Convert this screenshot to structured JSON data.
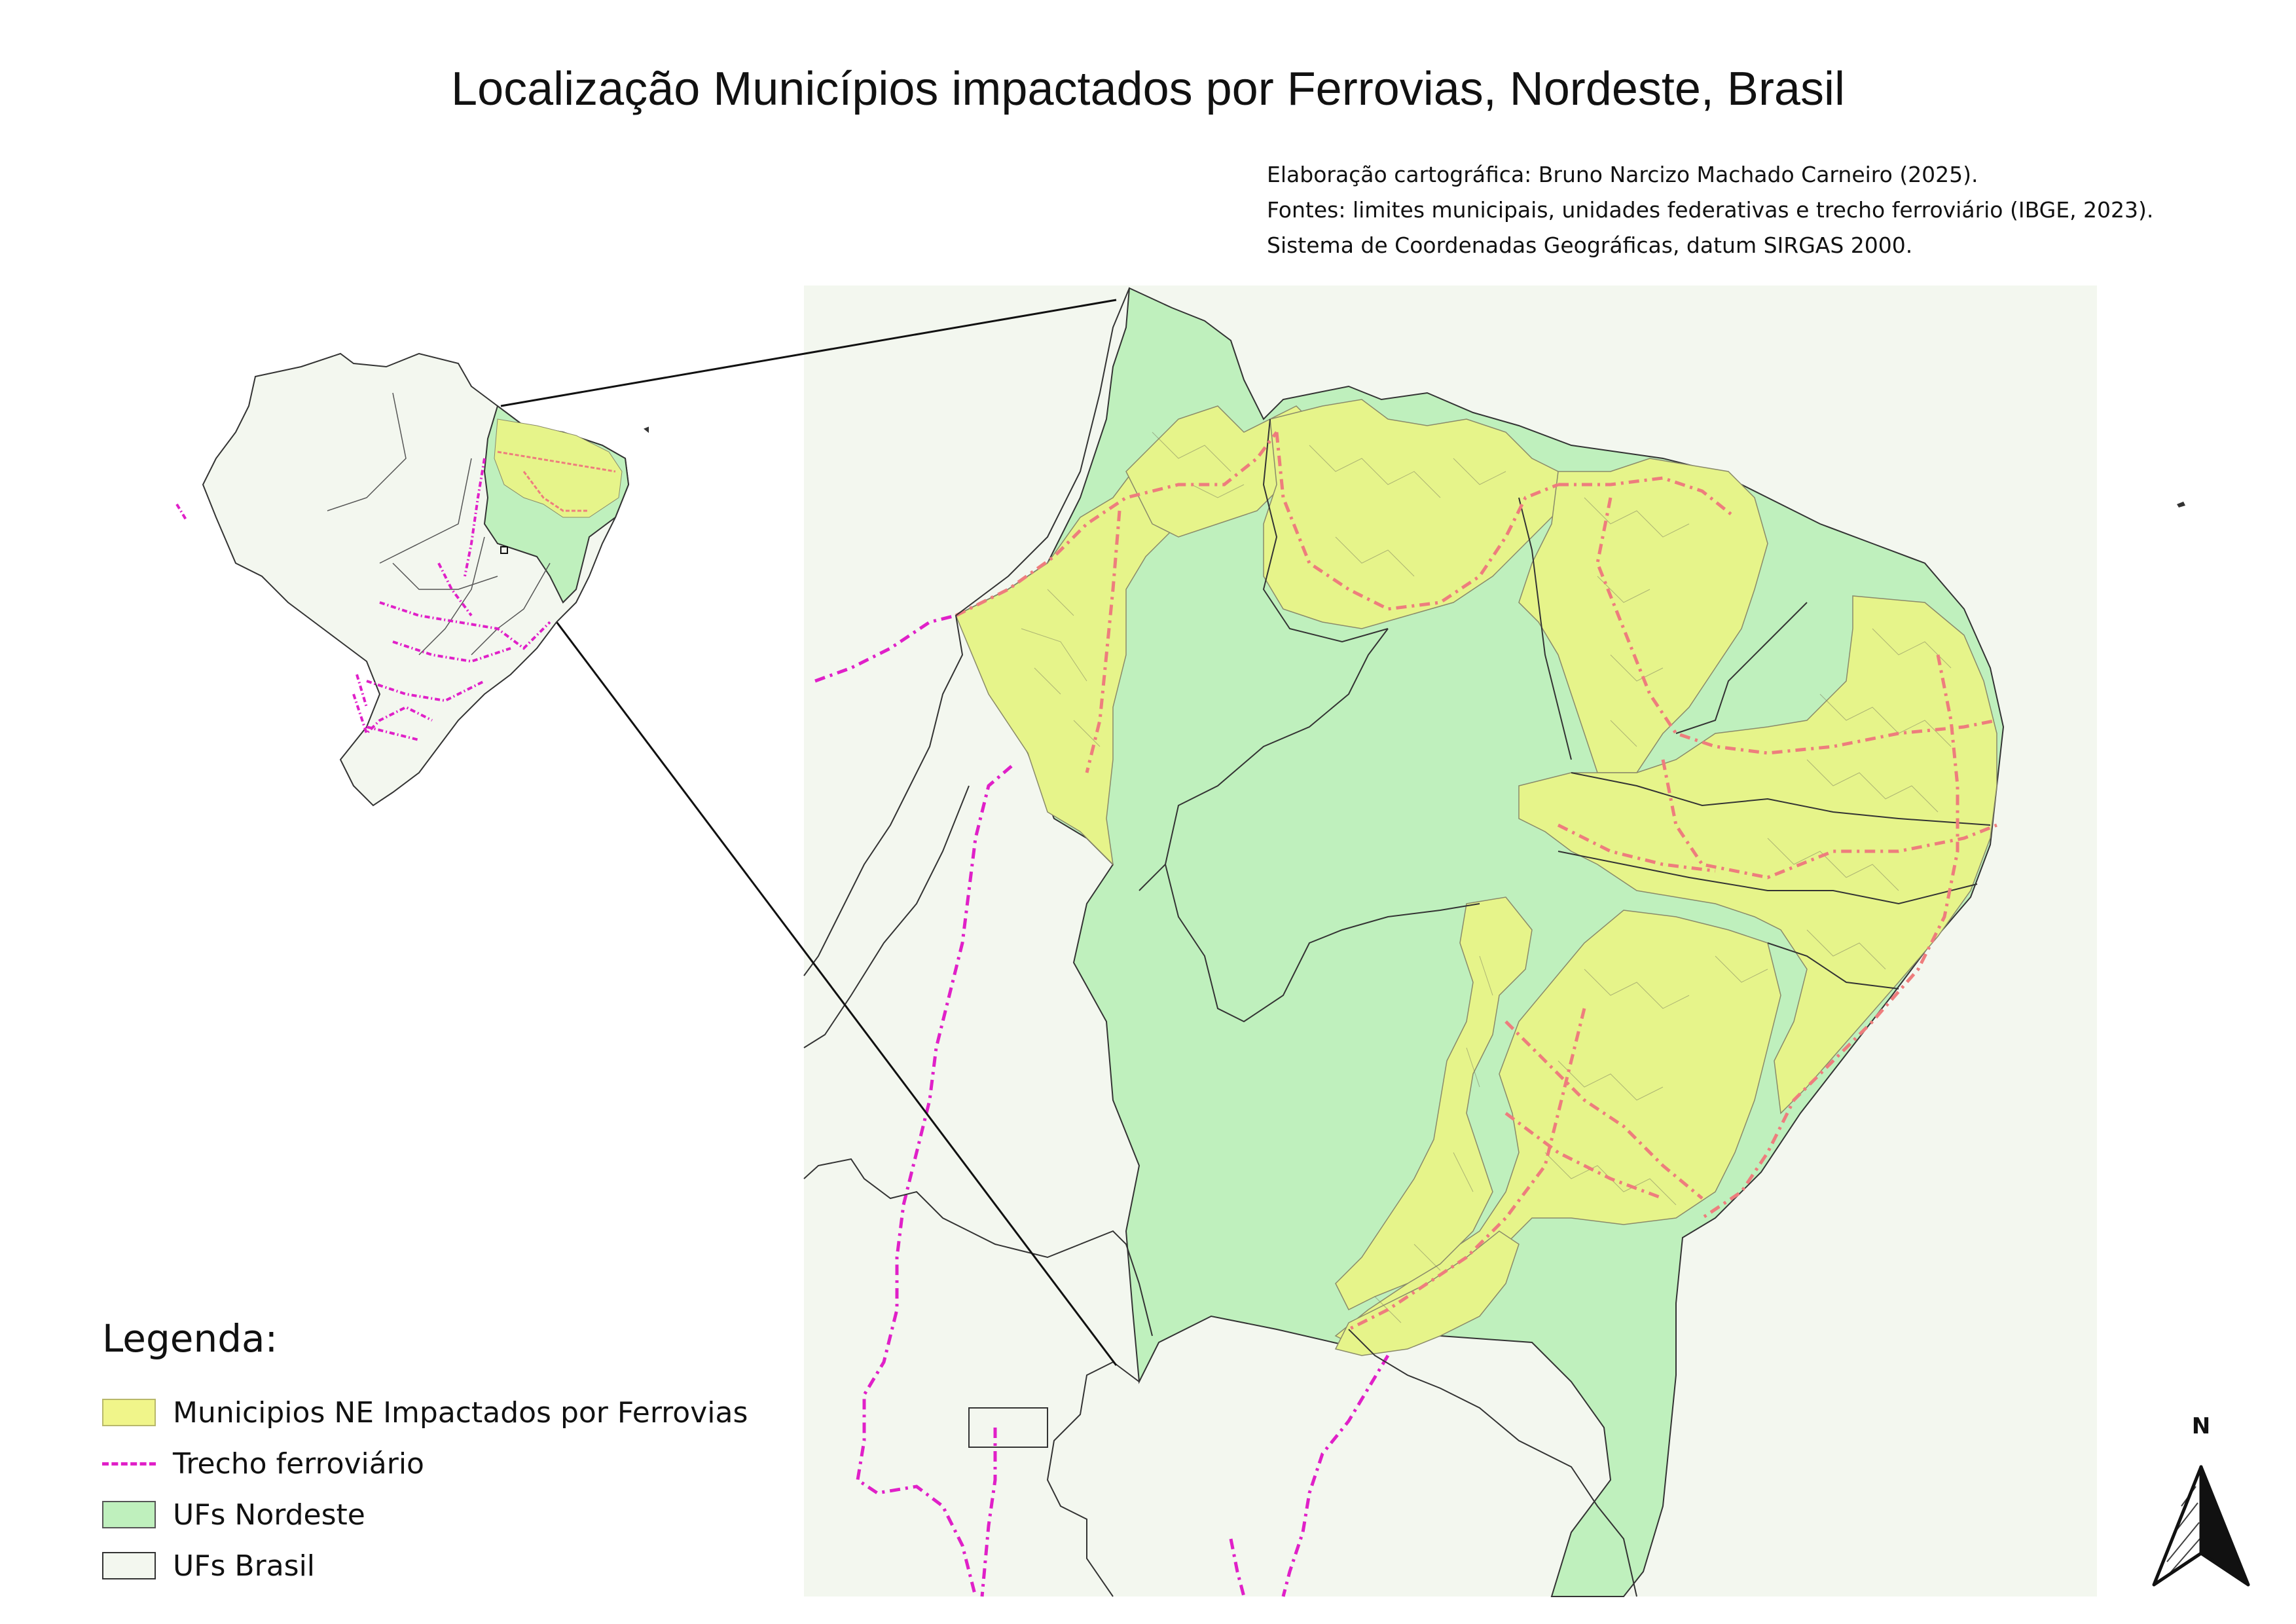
{
  "title": "Localização Municípios impactados por Ferrovias, Nordeste, Brasil",
  "credits": [
    "Elaboração cartográfica: Bruno Narcizo Machado Carneiro (2025).",
    "Fontes: limites municipais, unidades federativas e trecho ferroviário (IBGE, 2023).",
    "Sistema de Coordenadas Geográficas, datum SIRGAS 2000."
  ],
  "legend": {
    "title": "Legenda:",
    "items": [
      {
        "label": "Municipios NE Impactados por Ferrovias",
        "kind": "fill",
        "color": "#f0f58a"
      },
      {
        "label": "Trecho ferroviário",
        "kind": "line",
        "color": "#e020c8"
      },
      {
        "label": "UFs Nordeste",
        "kind": "fill",
        "color": "#bff0bd"
      },
      {
        "label": "UFs Brasil",
        "kind": "fill",
        "color": "#f3f7ef"
      }
    ]
  },
  "north_arrow": {
    "label": "N"
  },
  "colors": {
    "impacted": "#e6f48a",
    "nordeste": "#bff0bd",
    "brasil": "#f3f7ef",
    "railway": "#e020c8",
    "railway_ne": "#ee7d7d",
    "border": "#333333"
  }
}
